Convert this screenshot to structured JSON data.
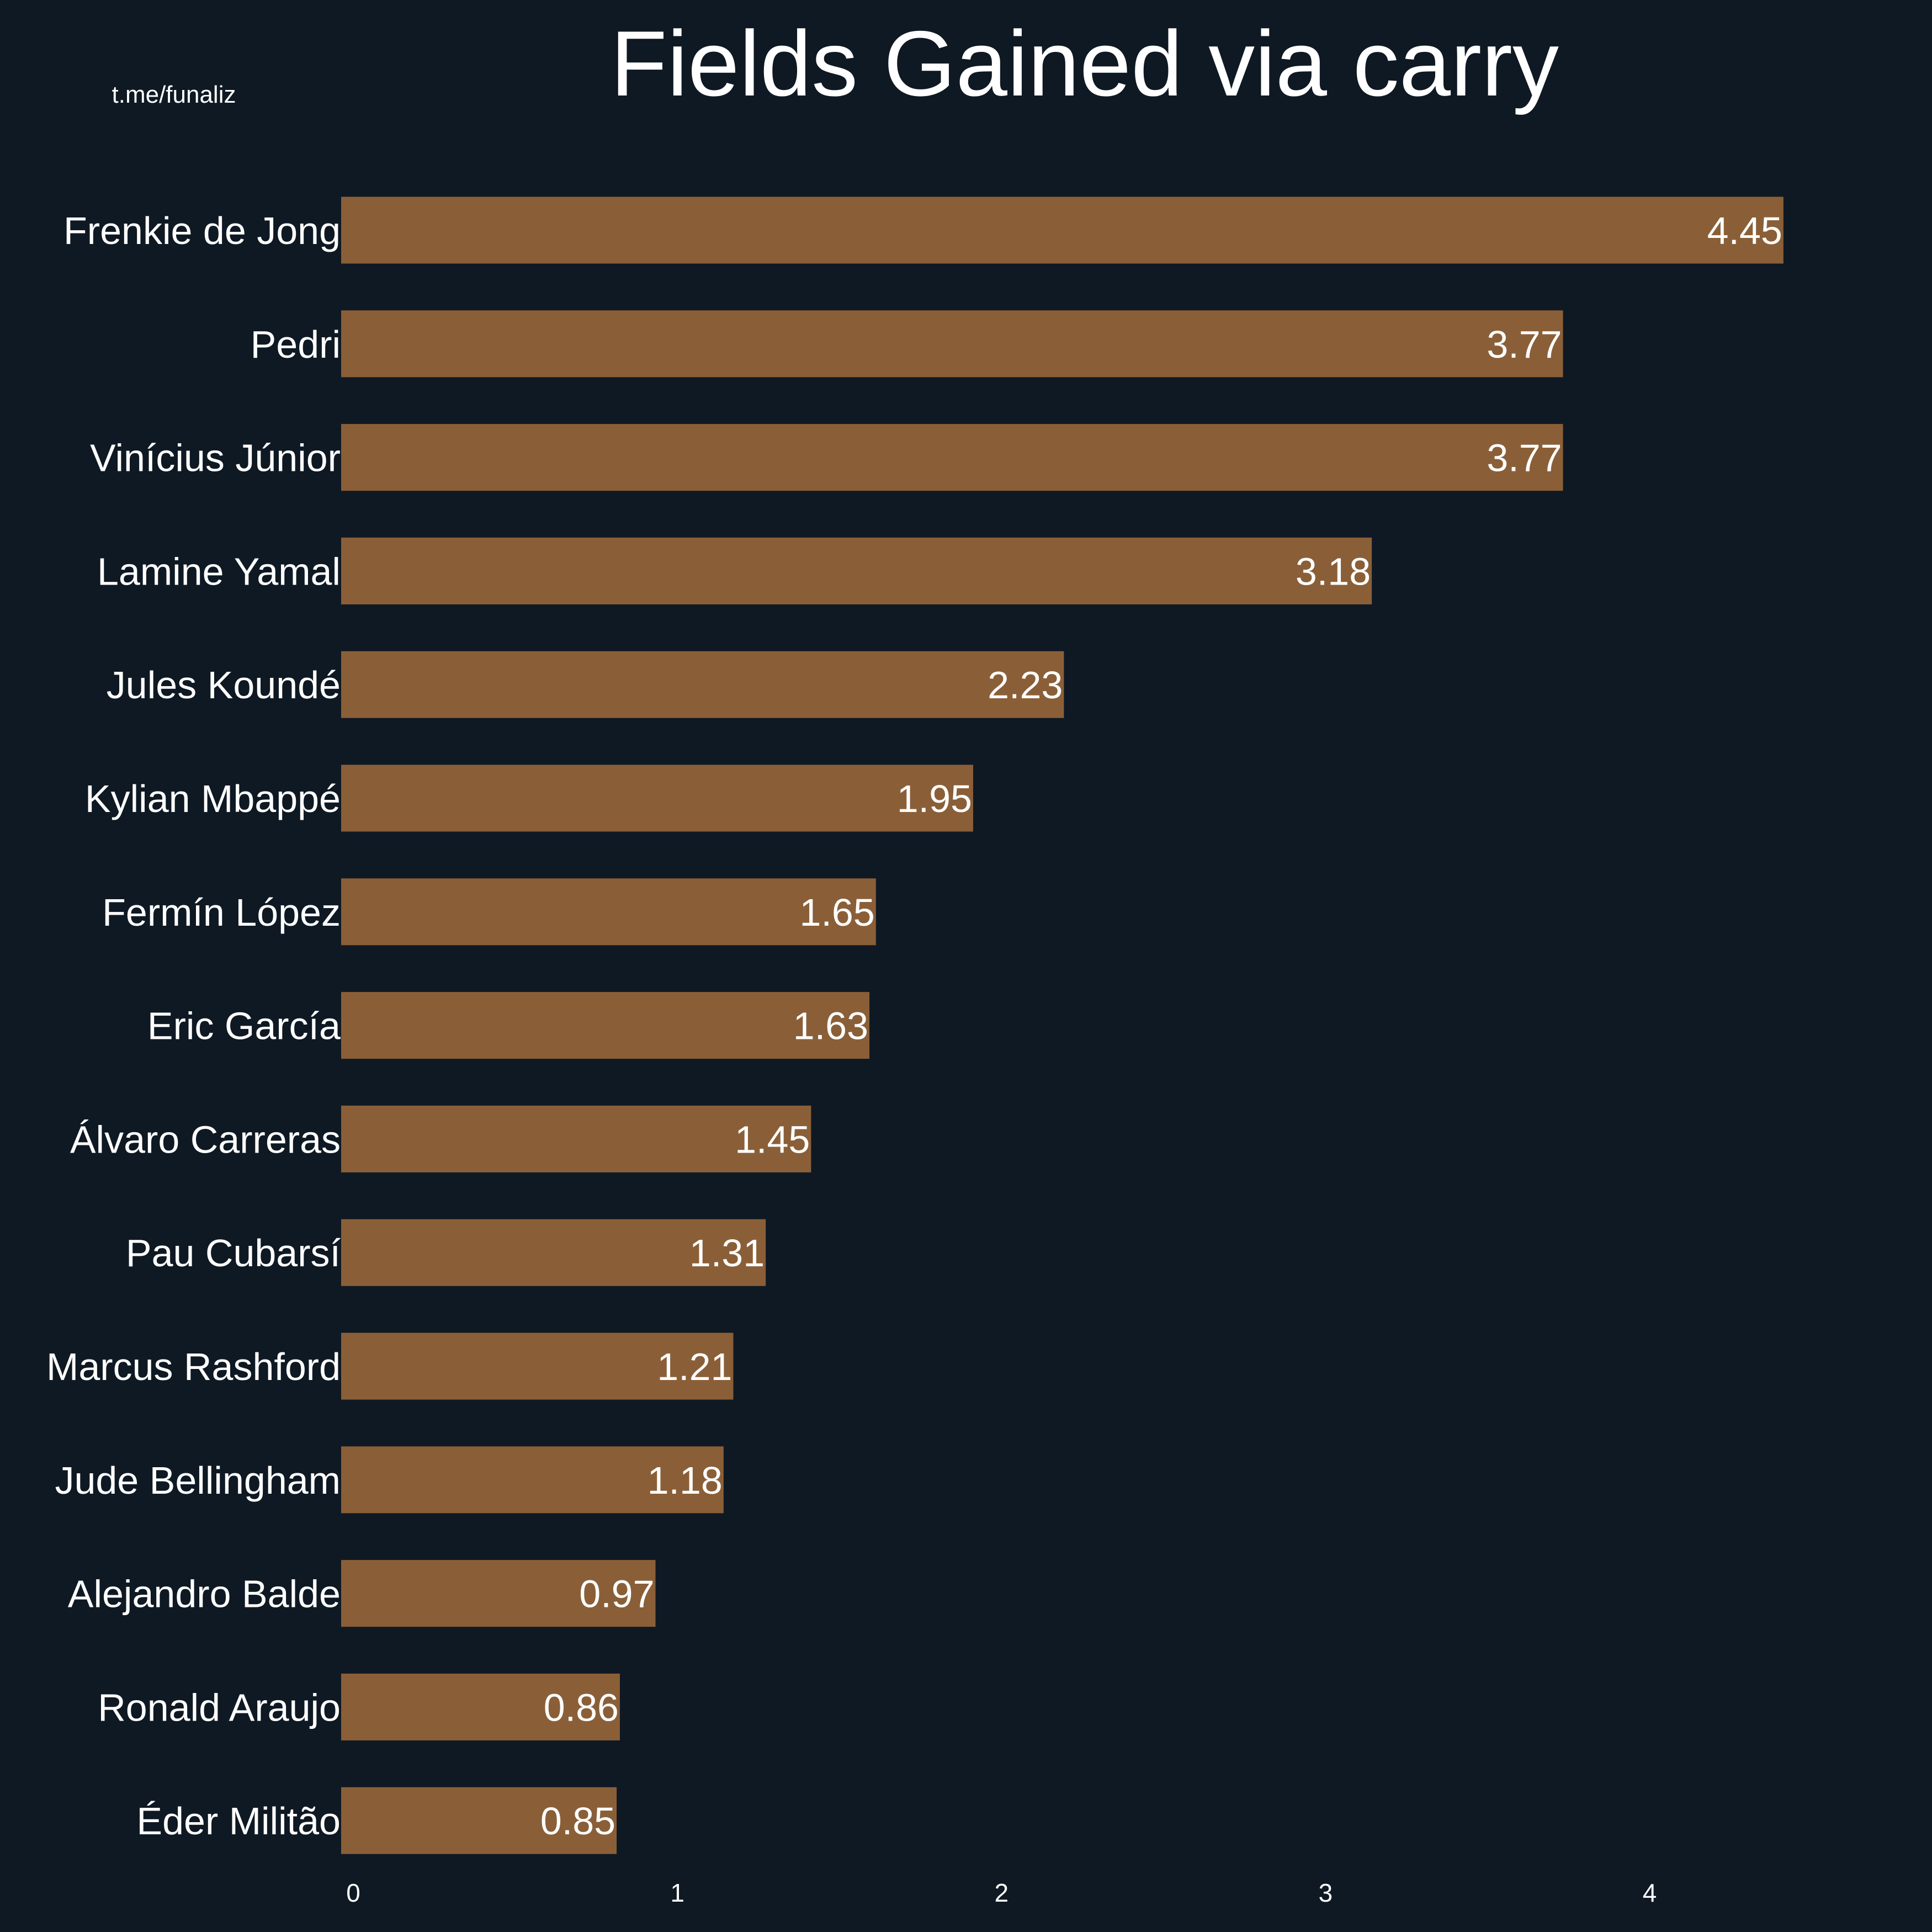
{
  "watermark": "t.me/funaliz",
  "chart_data": {
    "type": "bar",
    "orientation": "horizontal",
    "title": "Fields Gained via carry",
    "xlabel": "",
    "ylabel": "",
    "categories": [
      "Frenkie de Jong",
      "Pedri",
      "Vinícius Júnior",
      "Lamine Yamal",
      "Jules Koundé",
      "Kylian Mbappé",
      "Fermín López",
      "Eric García",
      "Álvaro Carreras",
      "Pau Cubarsí",
      "Marcus Rashford",
      "Jude Bellingham",
      "Alejandro Balde",
      "Ronald Araujo",
      "Éder Militão"
    ],
    "values": [
      4.45,
      3.77,
      3.77,
      3.18,
      2.23,
      1.95,
      1.65,
      1.63,
      1.45,
      1.31,
      1.21,
      1.18,
      0.97,
      0.86,
      0.85
    ],
    "value_labels": [
      "4.45",
      "3.77",
      "3.77",
      "3.18",
      "2.23",
      "1.95",
      "1.65",
      "1.63",
      "1.45",
      "1.31",
      "1.21",
      "1.18",
      "0.97",
      "0.86",
      "0.85"
    ],
    "xticks": [
      0,
      1,
      2,
      3,
      4
    ],
    "xtick_labels": [
      "0",
      "1",
      "2",
      "3",
      "4"
    ],
    "xlim": [
      0,
      4.67
    ],
    "grid": false,
    "legend": "none",
    "colors": {
      "background": "#0f1923",
      "bar": "#8a5f38",
      "text": "#ffffff"
    }
  }
}
